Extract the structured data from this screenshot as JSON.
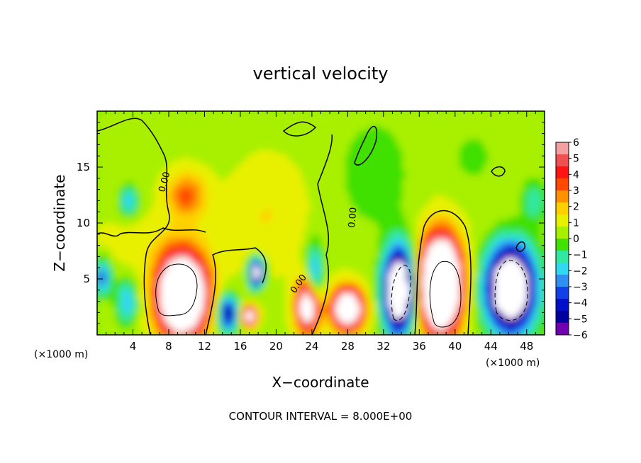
{
  "chart_data": {
    "type": "heatmap",
    "title": "vertical velocity",
    "xlabel": "X−coordinate",
    "ylabel": "Z−coordinate",
    "x_unit_left": "(×1000 m)",
    "x_unit_right": "(×1000 m)",
    "footer": "CONTOUR INTERVAL = 8.000E+00",
    "xlim": [
      0,
      50
    ],
    "ylim": [
      0,
      20
    ],
    "x_ticks": [
      4,
      8,
      12,
      16,
      20,
      24,
      28,
      32,
      36,
      40,
      44,
      48
    ],
    "y_ticks": [
      5,
      10,
      15
    ],
    "contour_label": "0.00",
    "colorbar": {
      "levels": [
        6,
        5,
        4,
        3,
        2,
        1,
        0,
        -1,
        -2,
        -3,
        -4,
        -5,
        -6
      ],
      "labels": [
        "6",
        "5",
        "4",
        "3",
        "2",
        "1",
        "0",
        "−1",
        "−2",
        "−3",
        "−4",
        "−5",
        "−6"
      ],
      "colors": [
        "#f4a0a0",
        "#f05050",
        "#ff1414",
        "#ff4800",
        "#ff9000",
        "#ffd000",
        "#e8f000",
        "#a8f000",
        "#40e000",
        "#30e8a0",
        "#30d8f0",
        "#3090f0",
        "#1040e8",
        "#0010c8",
        "#0000a0",
        "#7000b0"
      ]
    },
    "features": [
      {
        "x": 9.5,
        "z": 3.6,
        "w": 2.6,
        "h": 3.4,
        "value": 14
      },
      {
        "x": 10.0,
        "z": 12.5,
        "w": 2.2,
        "h": 2.0,
        "value": 3
      },
      {
        "x": 19.0,
        "z": 10.8,
        "w": 4.0,
        "h": 4.5,
        "value": 1
      },
      {
        "x": 17.8,
        "z": 5.6,
        "w": 0.8,
        "h": 1.2,
        "value": -9
      },
      {
        "x": 14.6,
        "z": 2.0,
        "w": 1.1,
        "h": 1.6,
        "value": -6
      },
      {
        "x": 17.0,
        "z": 1.7,
        "w": 0.8,
        "h": 0.8,
        "value": 9
      },
      {
        "x": 23.6,
        "z": 2.6,
        "w": 1.3,
        "h": 2.2,
        "value": 9
      },
      {
        "x": 24.3,
        "z": 5.0,
        "w": 0.9,
        "h": 3.0,
        "value": -4
      },
      {
        "x": 28.0,
        "z": 2.4,
        "w": 1.7,
        "h": 1.8,
        "value": 10
      },
      {
        "x": 33.7,
        "z": 4.0,
        "w": 1.6,
        "h": 3.5,
        "value": -12
      },
      {
        "x": 38.4,
        "z": 4.6,
        "w": 2.1,
        "h": 3.9,
        "value": 16
      },
      {
        "x": 46.2,
        "z": 4.2,
        "w": 2.6,
        "h": 3.6,
        "value": -12
      },
      {
        "x": 3.5,
        "z": 12.0,
        "w": 1.0,
        "h": 1.3,
        "value": -3
      },
      {
        "x": 0.6,
        "z": 5.2,
        "w": 1.0,
        "h": 1.6,
        "value": -4
      },
      {
        "x": 3.3,
        "z": 3.0,
        "w": 1.2,
        "h": 2.0,
        "value": -3
      },
      {
        "x": 48.8,
        "z": 12.0,
        "w": 1.3,
        "h": 2.0,
        "value": -2
      },
      {
        "x": 31.0,
        "z": 14.5,
        "w": 4.0,
        "h": 5.0,
        "value": -1.2
      },
      {
        "x": 42.0,
        "z": 16.0,
        "w": 3.0,
        "h": 3.0,
        "value": -0.8
      },
      {
        "x": 6.5,
        "z": 8.0,
        "w": 8.0,
        "h": 2.5,
        "value": 0.6
      }
    ]
  }
}
